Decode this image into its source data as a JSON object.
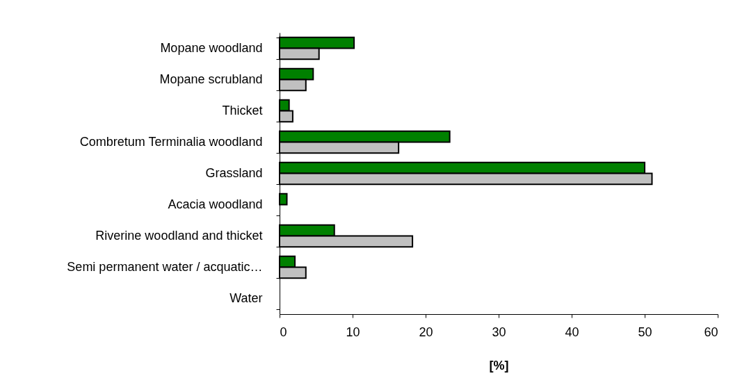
{
  "chart_data": {
    "type": "bar",
    "orientation": "horizontal",
    "xlabel": "[%]",
    "categories": [
      "Mopane woodland",
      "Mopane scrubland",
      "Thicket",
      "Combretum Terminalia woodland",
      "Grassland",
      "Acacia woodland",
      "Riverine woodland and thicket",
      "Semi permanent water / acquatic…",
      "Water"
    ],
    "series": [
      {
        "color": "#008000",
        "values": [
          10.2,
          4.6,
          1.3,
          23.3,
          50,
          1.0,
          7.5,
          2.1,
          0
        ]
      },
      {
        "color": "#c0c0c0",
        "values": [
          5.4,
          3.6,
          1.8,
          16.3,
          51,
          0,
          18.2,
          3.6,
          0
        ]
      }
    ],
    "xlim": [
      0,
      60
    ],
    "xticks": [
      0,
      10,
      20,
      30,
      40,
      50,
      60
    ],
    "grid": false,
    "legend": false
  }
}
